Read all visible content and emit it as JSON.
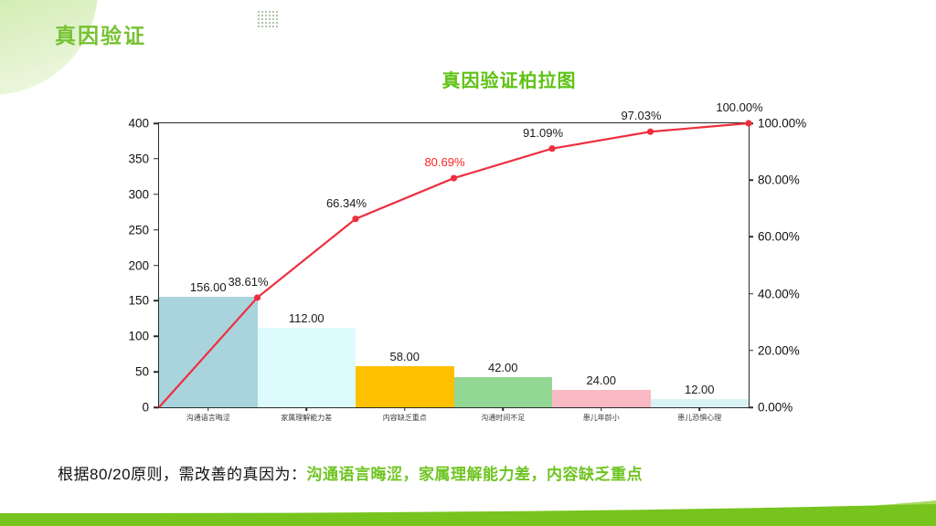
{
  "slide": {
    "title": "真因验证",
    "footer_text_black": "根据80/20原则，需改善的真因为：",
    "footer_text_green": "沟通语言晦涩，家属理解能力差，内容缺乏重点"
  },
  "colors": {
    "slide_title": "#76c133",
    "chart_title": "#5ec213",
    "footer_green": "#6fc421",
    "wave_main": "#77c41e",
    "wave_light": "#a8d95e"
  },
  "decorations": {
    "corner_blob": "green-circle",
    "dots_grid_icon": "dots-grid",
    "bottom_wave": "green-wave"
  },
  "chart_data": {
    "type": "pareto (bar + cumulative line)",
    "title": "真因验证柏拉图",
    "categories": [
      "沟通语言晦涩",
      "家属理解能力差",
      "内容缺乏重点",
      "沟通时间不足",
      "患儿年龄小",
      "患儿恐惧心理"
    ],
    "series": [
      {
        "type": "bar",
        "values": [
          156,
          112,
          58,
          42,
          24,
          12
        ],
        "labels": [
          "156.00",
          "112.00",
          "58.00",
          "42.00",
          "24.00",
          "12.00"
        ],
        "colors": [
          "#a9d4de",
          "#ddfbfd",
          "#ffc000",
          "#92d794",
          "#f9bac3",
          "#d9f3f5"
        ]
      },
      {
        "type": "line",
        "values": [
          38.61,
          66.34,
          80.69,
          91.09,
          97.03,
          100.0
        ],
        "labels": [
          "38.61%",
          "66.34%",
          "80.69%",
          "91.09%",
          "97.03%",
          "100.00%"
        ],
        "starts_at_zero": true,
        "color": "#ee2f3f",
        "highlight_index": 2,
        "highlight_color": "#ff2222"
      }
    ],
    "left_axis": {
      "min": 0,
      "max": 400,
      "ticks_top_to_bottom": [
        "400",
        "350",
        "300",
        "250",
        "200",
        "150",
        "100",
        "50",
        "0"
      ]
    },
    "right_axis": {
      "min": 0,
      "max": 100,
      "ticks_top_to_bottom": [
        "100.00%",
        "80.00%",
        "60.00%",
        "40.00%",
        "20.00%",
        "0.00%"
      ]
    },
    "grid": false,
    "legend": "none"
  }
}
